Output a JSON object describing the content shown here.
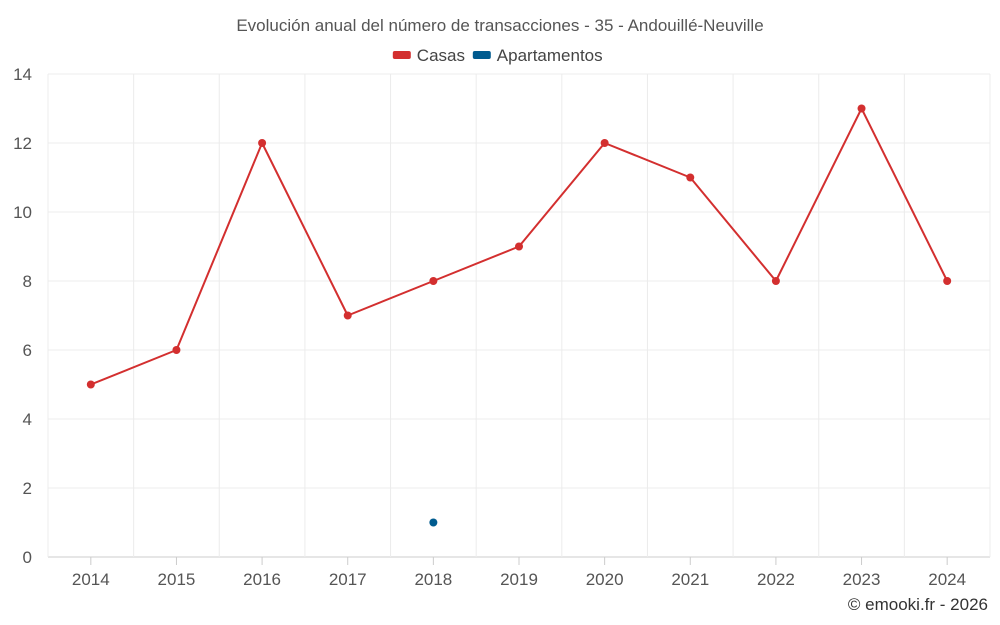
{
  "chart_data": {
    "type": "line",
    "title": "Evolución anual del número de transacciones - 35 - Andouillé-Neuville",
    "categories": [
      "2014",
      "2015",
      "2016",
      "2017",
      "2018",
      "2019",
      "2020",
      "2021",
      "2022",
      "2023",
      "2024"
    ],
    "series": [
      {
        "name": "Casas",
        "color": "#d32f2f",
        "values": [
          5,
          6,
          12,
          7,
          8,
          9,
          12,
          11,
          8,
          13,
          8
        ]
      },
      {
        "name": "Apartamentos",
        "color": "#005b8f",
        "values": [
          null,
          null,
          null,
          null,
          1,
          null,
          null,
          null,
          null,
          null,
          null
        ]
      }
    ],
    "ylim": [
      0,
      14
    ],
    "yticks": [
      0,
      2,
      4,
      6,
      8,
      10,
      12,
      14
    ],
    "grid": true,
    "legend_position": "top-center",
    "xlabel": "",
    "ylabel": ""
  },
  "credit": "© emooki.fr - 2026"
}
